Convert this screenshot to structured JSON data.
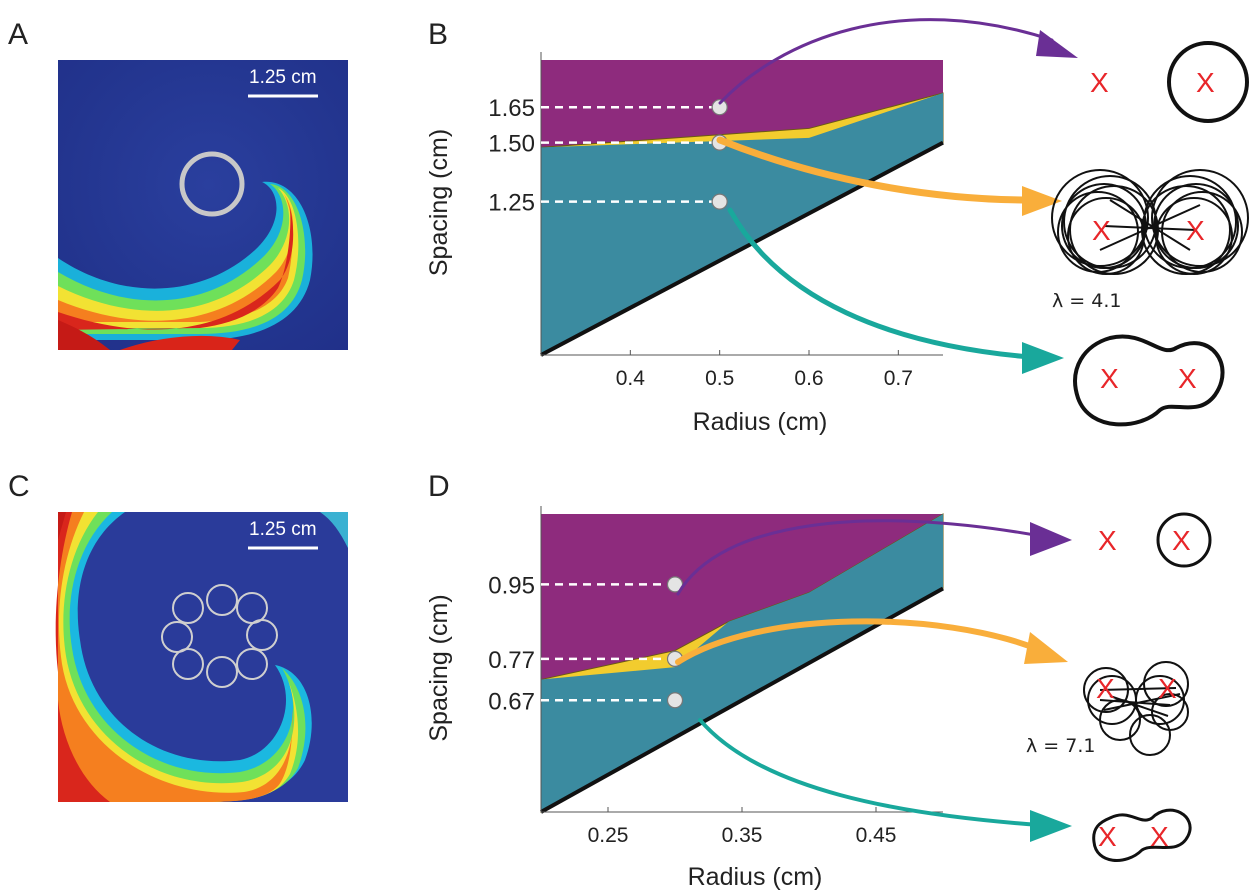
{
  "panels": {
    "A": {
      "letter": "A",
      "scale_bar": "1.25 cm"
    },
    "B": {
      "letter": "B"
    },
    "C": {
      "letter": "C",
      "scale_bar": "1.25 cm"
    },
    "D": {
      "letter": "D"
    }
  },
  "colors": {
    "purple": "#8e2b7d",
    "yellow": "#f2cc2e",
    "teal": "#3b8ba0",
    "arrow_purple": "#6a2f95",
    "arrow_orange": "#f9ae3b",
    "arrow_teal": "#19a89c",
    "marker_x": "#e8262a"
  },
  "trajectory_labels": {
    "B_yellow": "λ = 4.1",
    "D_yellow": "λ = 7.1"
  },
  "x_marker": "X",
  "chart_data": [
    {
      "type": "area",
      "panel": "B",
      "xlabel": "Radius (cm)",
      "ylabel": "Spacing (cm)",
      "xlim": [
        0.3,
        0.75
      ],
      "ylim": [
        0.6,
        1.85
      ],
      "x_ticks": [
        "0.4",
        "0.5",
        "0.6",
        "0.7"
      ],
      "y_ticks": [
        "1.25",
        "1.50",
        "1.65"
      ],
      "lower_bound_line": {
        "x": [
          0.3,
          0.75
        ],
        "y": [
          0.6,
          1.5
        ]
      },
      "teal_top": {
        "x": [
          0.3,
          0.6,
          0.75
        ],
        "y": [
          1.48,
          1.52,
          1.71
        ]
      },
      "yellow_top": {
        "x": [
          0.3,
          0.6,
          0.75
        ],
        "y": [
          1.48,
          1.56,
          1.71
        ]
      },
      "purple_top": {
        "x": [
          0.3,
          0.75
        ],
        "y": [
          1.85,
          1.85
        ]
      },
      "probe_points": {
        "x": [
          0.5,
          0.5,
          0.5
        ],
        "y": [
          1.65,
          1.5,
          1.25
        ]
      }
    },
    {
      "type": "area",
      "panel": "D",
      "xlabel": "Radius (cm)",
      "ylabel": "Spacing (cm)",
      "xlim": [
        0.2,
        0.5
      ],
      "ylim": [
        0.4,
        1.12
      ],
      "x_ticks": [
        "0.25",
        "0.35",
        "0.45"
      ],
      "y_ticks": [
        "0.67",
        "0.77",
        "0.95"
      ],
      "lower_bound_line": {
        "x": [
          0.2,
          0.5
        ],
        "y": [
          0.4,
          0.94
        ]
      },
      "teal_top": {
        "x": [
          0.2,
          0.3,
          0.34,
          0.4,
          0.5
        ],
        "y": [
          0.72,
          0.75,
          0.86,
          0.93,
          1.12
        ]
      },
      "yellow_top": {
        "x": [
          0.2,
          0.3,
          0.34,
          0.4,
          0.5
        ],
        "y": [
          0.72,
          0.79,
          0.86,
          0.93,
          1.12
        ]
      },
      "purple_top": {
        "x": [
          0.2,
          0.5
        ],
        "y": [
          1.12,
          1.12
        ]
      },
      "probe_points": {
        "x": [
          0.3,
          0.3,
          0.3
        ],
        "y": [
          0.95,
          0.77,
          0.67
        ]
      }
    }
  ]
}
